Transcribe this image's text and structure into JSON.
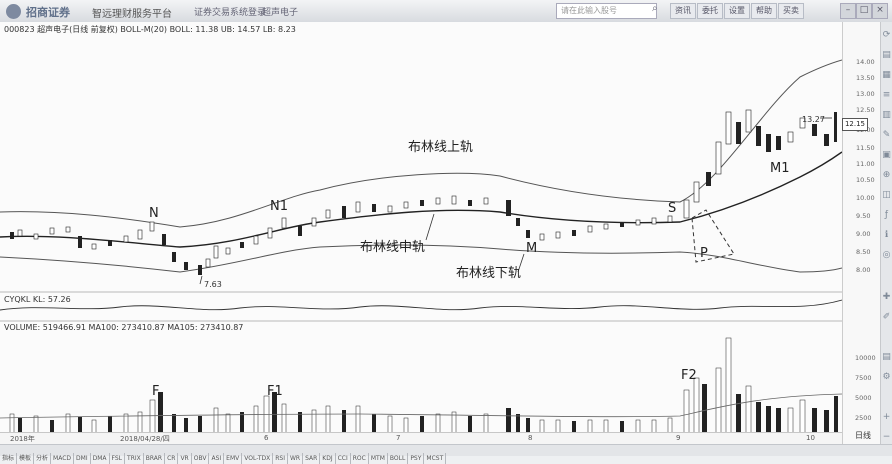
{
  "titlebar": {
    "brand": "招商证券",
    "platform": "智远理财服务平台",
    "links": [
      "证券交易系统登录",
      "超声电子"
    ],
    "search_placeholder": "请在此输入股号",
    "buttons": [
      "资讯",
      "委托",
      "设置",
      "帮助",
      "买卖"
    ]
  },
  "chart_header": {
    "boll_info": "000823 超声电子(日线 前复权) BOLL-M(20)  BOLL: 11.38  UB: 14.57  LB: 8.23",
    "indicator_info": "CYQKL  KL: 57.26",
    "volume_info": "VOLUME: 519466.91  MA100: 273410.87  MA105: 273410.87"
  },
  "annotations": {
    "upper_band": "布林线上轨",
    "middle_band": "布林线中轨",
    "lower_band": "布林线下轨",
    "N": "N",
    "N1": "N1",
    "M": "M",
    "M1": "M1",
    "S": "S",
    "P": "P",
    "F": "F",
    "F1": "F1",
    "F2": "F2",
    "low_price": "7.63",
    "high_price": "13.27",
    "current_price": "12.15"
  },
  "price_axis": [
    "14.00",
    "13.50",
    "13.00",
    "12.50",
    "12.00",
    "11.50",
    "11.00",
    "10.50",
    "10.00",
    "9.50",
    "9.00",
    "8.50",
    "8.00"
  ],
  "volume_axis": [
    "10000",
    "7500",
    "5000",
    "2500"
  ],
  "date_labels": [
    "2018年",
    "2018/04/28/四",
    "6",
    "7",
    "8",
    "9",
    "10"
  ],
  "bottom_tabs": [
    "指标",
    "模板",
    "分析",
    "MACD",
    "DMI",
    "DMA",
    "FSL",
    "TRIX",
    "BRAR",
    "CR",
    "VR",
    "OBV",
    "ASI",
    "EMV",
    "VOL-TDX",
    "RSI",
    "WR",
    "SAR",
    "KDJ",
    "CCI",
    "ROC",
    "MTM",
    "BOLL",
    "PSY",
    "MCST"
  ],
  "right_period_label": "日线",
  "colors": {
    "up": "#ffffff",
    "down": "#222222",
    "line": "#333333"
  }
}
